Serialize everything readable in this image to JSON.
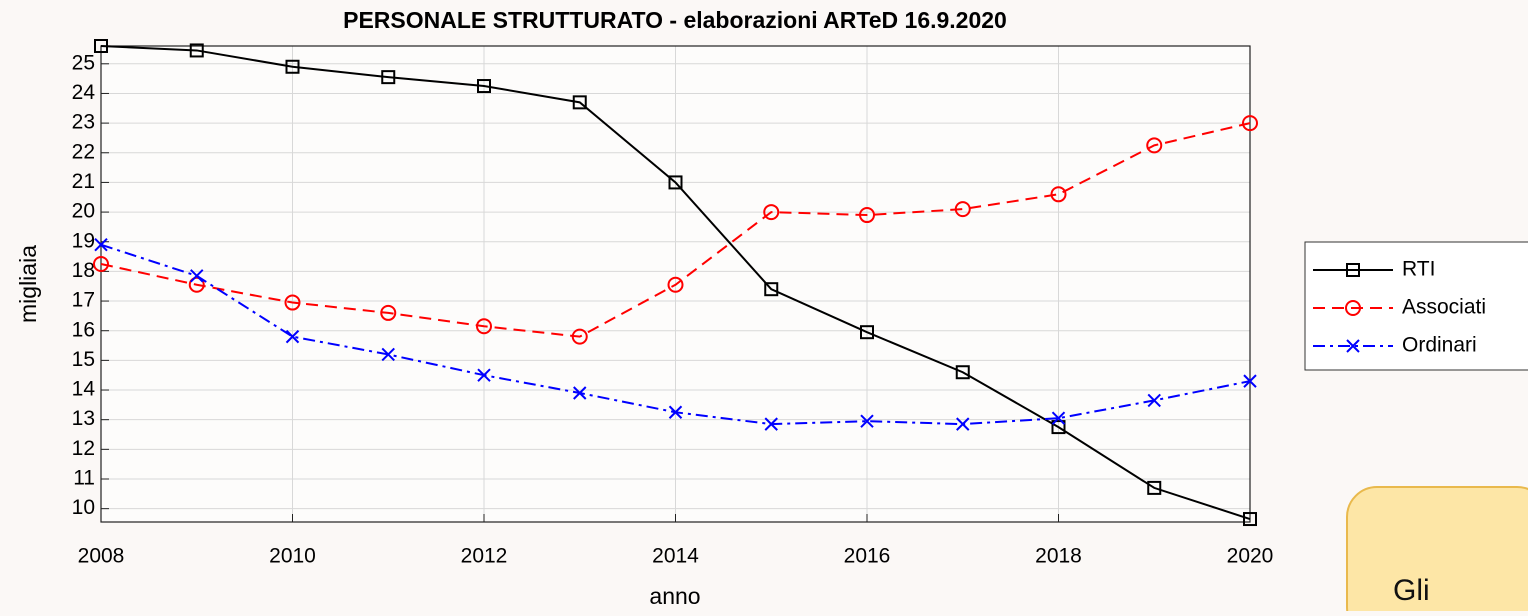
{
  "chart_data": {
    "type": "line",
    "title": "PERSONALE STRUTTURATO - elaborazioni ARTeD 16.9.2020",
    "x_label": "anno",
    "y_label": "migliaia",
    "x": [
      2008,
      2009,
      2010,
      2011,
      2012,
      2013,
      2014,
      2015,
      2016,
      2017,
      2018,
      2019,
      2020
    ],
    "series": [
      {
        "name": "RTI",
        "color": "#000000",
        "marker": "square",
        "linestyle": "solid",
        "values": [
          25.6,
          25.45,
          24.9,
          24.55,
          24.25,
          23.7,
          21.0,
          17.4,
          15.95,
          14.6,
          12.75,
          10.7,
          9.65
        ]
      },
      {
        "name": "Associati",
        "color": "#ff0000",
        "marker": "circle",
        "linestyle": "dashed",
        "values": [
          18.25,
          17.55,
          16.95,
          16.6,
          16.15,
          15.8,
          17.55,
          20.0,
          19.9,
          20.1,
          20.6,
          22.25,
          23.0
        ]
      },
      {
        "name": "Ordinari",
        "color": "#0000ff",
        "marker": "x",
        "linestyle": "dashdot",
        "values": [
          18.9,
          17.85,
          15.8,
          15.2,
          14.5,
          13.9,
          13.25,
          12.85,
          12.95,
          12.85,
          13.05,
          13.65,
          14.3
        ]
      }
    ],
    "xlim": [
      2008,
      2020
    ],
    "xticks": [
      2008,
      2010,
      2012,
      2014,
      2016,
      2018,
      2020
    ],
    "ylim": [
      9.55,
      25.6
    ],
    "yticks": [
      10,
      11,
      12,
      13,
      14,
      15,
      16,
      17,
      18,
      19,
      20,
      21,
      22,
      23,
      24,
      25
    ],
    "grid": true,
    "legend": "right"
  },
  "callout": {
    "text": "Gli"
  }
}
